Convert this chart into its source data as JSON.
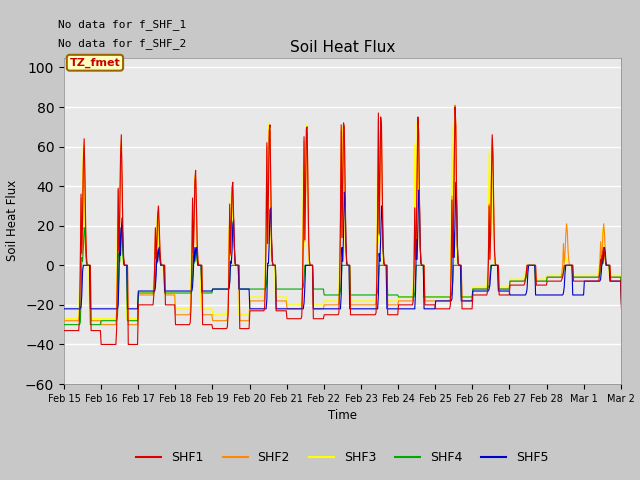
{
  "title": "Soil Heat Flux",
  "ylabel": "Soil Heat Flux",
  "xlabel": "Time",
  "ylim": [
    -60,
    105
  ],
  "yticks": [
    -60,
    -40,
    -20,
    0,
    20,
    40,
    60,
    80,
    100
  ],
  "series_colors": {
    "SHF1": "#dd0000",
    "SHF2": "#ff8800",
    "SHF3": "#ffff00",
    "SHF4": "#00aa00",
    "SHF5": "#0000cc"
  },
  "top_labels": [
    "No data for f_SHF_1",
    "No data for f_SHF_2"
  ],
  "box_label": "TZ_fmet",
  "xtick_labels": [
    "Feb 15",
    "Feb 16",
    "Feb 17",
    "Feb 18",
    "Feb 19",
    "Feb 20",
    "Feb 21",
    "Feb 22",
    "Feb 23",
    "Feb 24",
    "Feb 25",
    "Feb 26",
    "Feb 27",
    "Feb 28",
    "Mar 1",
    "Mar 2"
  ],
  "figsize": [
    6.4,
    4.8
  ],
  "dpi": 100
}
